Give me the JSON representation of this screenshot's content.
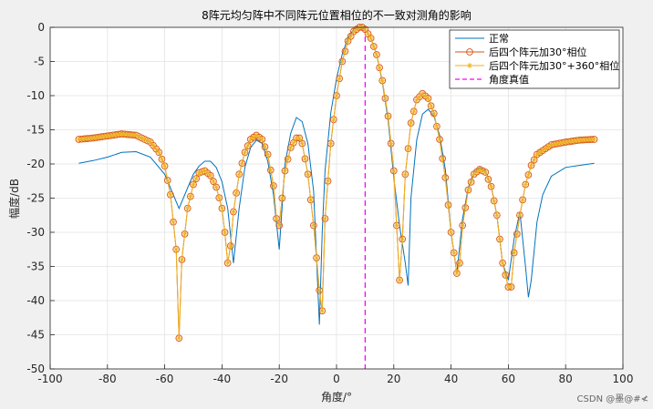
{
  "chart_data": {
    "type": "line",
    "title": "8阵元均匀阵中不同阵元位置相位的不一致对测角的影响",
    "xlabel": "角度/°",
    "ylabel": "幅度/dB",
    "xlim": [
      -100,
      100
    ],
    "ylim": [
      -50,
      0
    ],
    "xticks": [
      -100,
      -80,
      -60,
      -40,
      -20,
      0,
      20,
      40,
      60,
      80,
      100
    ],
    "yticks": [
      0,
      -5,
      -10,
      -15,
      -20,
      -25,
      -30,
      -35,
      -40,
      -45,
      -50
    ],
    "grid": true,
    "legend_position": "top-right",
    "series": [
      {
        "name": "正常",
        "color": "#0072bd",
        "marker": "none",
        "x": [
          -90,
          -85,
          -80,
          -75,
          -70,
          -65,
          -60,
          -55,
          -50,
          -48,
          -46,
          -44,
          -42,
          -40,
          -38,
          -36,
          -34,
          -32,
          -30,
          -28,
          -26,
          -24,
          -22,
          -20,
          -18,
          -16,
          -14,
          -12,
          -10,
          -8,
          -6,
          -5,
          -4,
          -2,
          0,
          2,
          4,
          6,
          8,
          10,
          12,
          14,
          16,
          18,
          20,
          22,
          24,
          25,
          26,
          28,
          30,
          32,
          34,
          36,
          38,
          40,
          42,
          44,
          46,
          48,
          50,
          52,
          54,
          56,
          58,
          60,
          62,
          64,
          66,
          67,
          68,
          70,
          72,
          75,
          80,
          85,
          90
        ],
        "y": [
          -19.9,
          -19.5,
          -19.0,
          -18.3,
          -18.2,
          -19.0,
          -21.5,
          -26.5,
          -21.5,
          -20.3,
          -19.6,
          -19.6,
          -20.5,
          -22.6,
          -26.5,
          -34.5,
          -26.5,
          -20.5,
          -17.6,
          -16.5,
          -17.0,
          -19.6,
          -24.5,
          -32.5,
          -20.0,
          -15.5,
          -13.2,
          -13.8,
          -17.0,
          -24.0,
          -43.5,
          -30.0,
          -21.0,
          -12.5,
          -7.5,
          -3.9,
          -1.5,
          -0.3,
          0,
          -0.3,
          -1.6,
          -4.0,
          -8.0,
          -13.5,
          -22.0,
          -29.0,
          -34.5,
          -37.8,
          -25.0,
          -16.5,
          -12.7,
          -12.0,
          -13.0,
          -15.8,
          -20.8,
          -30.0,
          -36.0,
          -28.0,
          -23.5,
          -21.2,
          -20.5,
          -21.0,
          -23.2,
          -27.5,
          -34.5,
          -37.0,
          -31.0,
          -27.0,
          -35.0,
          -39.5,
          -37.0,
          -28.5,
          -24.5,
          -21.8,
          -20.5,
          -20.2,
          -19.9
        ]
      },
      {
        "name": "后四个阵元加30°相位",
        "color": "#d95319",
        "marker": "circle",
        "x": [
          -90,
          -85,
          -80,
          -75,
          -70,
          -65,
          -62,
          -60,
          -58,
          -56,
          -55,
          -54,
          -52,
          -50,
          -48,
          -46,
          -44,
          -42,
          -40,
          -39,
          -38,
          -37,
          -36,
          -34,
          -32,
          -30,
          -28,
          -26,
          -24,
          -22,
          -21,
          -20,
          -18,
          -16,
          -14,
          -13,
          -12,
          -10,
          -8,
          -6,
          -5,
          -4,
          -2,
          0,
          2,
          4,
          6,
          8,
          9,
          10,
          12,
          14,
          16,
          18,
          20,
          21,
          22,
          23,
          24,
          26,
          28,
          30,
          32,
          34,
          36,
          38,
          40,
          42,
          43,
          44,
          46,
          48,
          50,
          52,
          54,
          56,
          58,
          60,
          61,
          62,
          64,
          66,
          68,
          70,
          75,
          80,
          85,
          90
        ],
        "y": [
          -16.4,
          -16.2,
          -15.9,
          -15.6,
          -15.8,
          -16.8,
          -18.3,
          -20.3,
          -24.5,
          -32.5,
          -45.5,
          -34.0,
          -26.5,
          -23.0,
          -21.3,
          -21.0,
          -21.7,
          -23.4,
          -26.5,
          -30.0,
          -34.5,
          -32.0,
          -27.0,
          -21.5,
          -18.3,
          -16.4,
          -15.8,
          -16.4,
          -18.6,
          -23.2,
          -28.0,
          -29.0,
          -21.0,
          -17.6,
          -16.2,
          -16.2,
          -17.0,
          -21.5,
          -29.0,
          -38.5,
          -41.5,
          -28.0,
          -17.0,
          -10.0,
          -5.0,
          -2.0,
          -0.6,
          0,
          0,
          -0.3,
          -1.6,
          -4.0,
          -7.8,
          -13.0,
          -21.0,
          -29.0,
          -37.0,
          -31.0,
          -21.5,
          -14.0,
          -10.6,
          -9.7,
          -10.4,
          -12.6,
          -16.4,
          -22.0,
          -30.0,
          -36.0,
          -34.5,
          -29.0,
          -23.8,
          -21.5,
          -20.8,
          -21.2,
          -23.3,
          -27.5,
          -34.5,
          -38.0,
          -38.0,
          -33.0,
          -27.5,
          -23.0,
          -20.2,
          -18.6,
          -17.2,
          -16.8,
          -16.5,
          -16.4
        ]
      },
      {
        "name": "后四个阵元加30°+360°相位",
        "color": "#edb120",
        "marker": "star",
        "x": [
          -90,
          -85,
          -80,
          -75,
          -70,
          -65,
          -62,
          -60,
          -58,
          -56,
          -55,
          -54,
          -52,
          -50,
          -48,
          -46,
          -44,
          -42,
          -40,
          -39,
          -38,
          -37,
          -36,
          -34,
          -32,
          -30,
          -28,
          -26,
          -24,
          -22,
          -21,
          -20,
          -18,
          -16,
          -14,
          -13,
          -12,
          -10,
          -8,
          -6,
          -5,
          -4,
          -2,
          0,
          2,
          4,
          6,
          8,
          9,
          10,
          12,
          14,
          16,
          18,
          20,
          21,
          22,
          23,
          24,
          26,
          28,
          30,
          32,
          34,
          36,
          38,
          40,
          42,
          43,
          44,
          46,
          48,
          50,
          52,
          54,
          56,
          58,
          60,
          61,
          62,
          64,
          66,
          68,
          70,
          75,
          80,
          85,
          90
        ],
        "y": [
          -16.4,
          -16.2,
          -15.9,
          -15.6,
          -15.8,
          -16.8,
          -18.3,
          -20.3,
          -24.5,
          -32.5,
          -45.5,
          -34.0,
          -26.5,
          -23.0,
          -21.3,
          -21.0,
          -21.7,
          -23.4,
          -26.5,
          -30.0,
          -34.5,
          -32.0,
          -27.0,
          -21.5,
          -18.3,
          -16.4,
          -15.8,
          -16.4,
          -18.6,
          -23.2,
          -28.0,
          -29.0,
          -21.0,
          -17.6,
          -16.2,
          -16.2,
          -17.0,
          -21.5,
          -29.0,
          -38.5,
          -41.5,
          -28.0,
          -17.0,
          -10.0,
          -5.0,
          -2.0,
          -0.6,
          0,
          0,
          -0.3,
          -1.6,
          -4.0,
          -7.8,
          -13.0,
          -21.0,
          -29.0,
          -37.0,
          -31.0,
          -21.5,
          -14.0,
          -10.6,
          -9.7,
          -10.4,
          -12.6,
          -16.4,
          -22.0,
          -30.0,
          -36.0,
          -34.5,
          -29.0,
          -23.8,
          -21.5,
          -20.8,
          -21.2,
          -23.3,
          -27.5,
          -34.5,
          -38.0,
          -38.0,
          -33.0,
          -27.5,
          -23.0,
          -20.2,
          -18.6,
          -17.2,
          -16.8,
          -16.5,
          -16.4
        ]
      },
      {
        "name": "角度真值",
        "color": "#ff00ff",
        "marker": "none",
        "dash": true,
        "x": [
          10,
          10
        ],
        "y": [
          0,
          -50
        ]
      }
    ]
  },
  "watermark": "CSDN @墨@#≮"
}
